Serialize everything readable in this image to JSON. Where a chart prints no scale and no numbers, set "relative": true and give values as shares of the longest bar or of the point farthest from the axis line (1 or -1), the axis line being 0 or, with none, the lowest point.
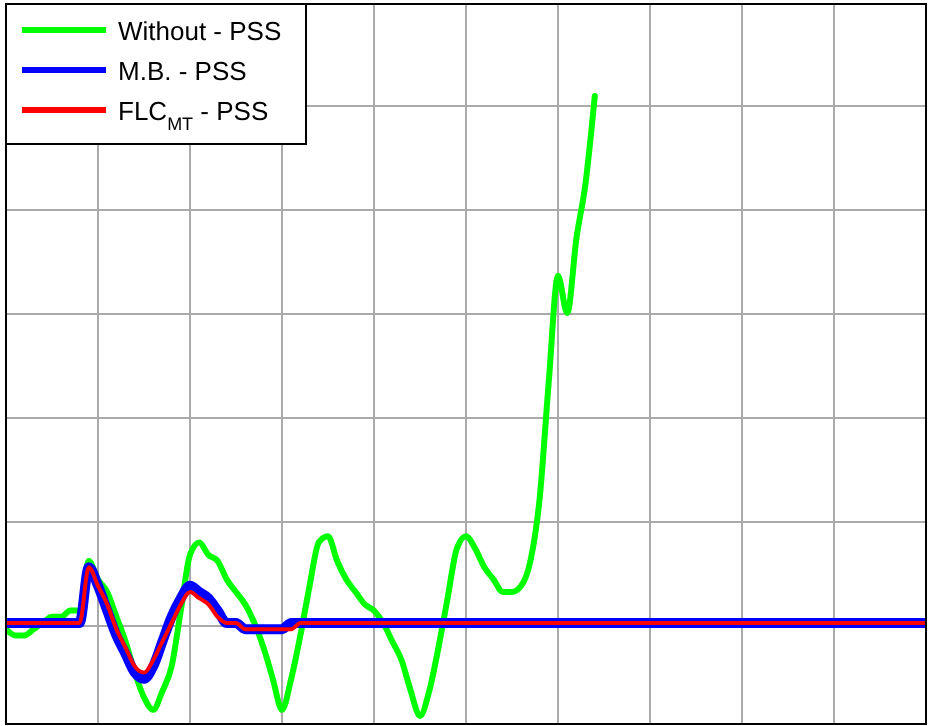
{
  "chart_data": {
    "type": "line",
    "relative": true,
    "grid": true,
    "legend": "top left",
    "line_style": "solid",
    "marker": "none",
    "categories": [
      null,
      null,
      null,
      null,
      null,
      null,
      null,
      null,
      null,
      null,
      null,
      null,
      null,
      null,
      null,
      null,
      null,
      null,
      null,
      null,
      null,
      null,
      null,
      null,
      null,
      null,
      null,
      null,
      null,
      null,
      null,
      null,
      null,
      null,
      null,
      null,
      null,
      null,
      null,
      null,
      null,
      null,
      null,
      null,
      null,
      null,
      null,
      null,
      null,
      null,
      null,
      null,
      null,
      null,
      null,
      null,
      null,
      null,
      null,
      null,
      null,
      null,
      null,
      null,
      null,
      null,
      null,
      null,
      null,
      null,
      null,
      null,
      null,
      null,
      null,
      null,
      null,
      null,
      null,
      null,
      null,
      null,
      null,
      null,
      null,
      null,
      null,
      null,
      null,
      null,
      null,
      null,
      null,
      null,
      null,
      null,
      null,
      null,
      null,
      null,
      null
    ],
    "series": [
      {
        "name": "Without - PSS",
        "color": "#00ff00",
        "values": [
          0.14,
          0.13,
          0.13,
          0.14,
          0.15,
          0.16,
          0.16,
          0.17,
          0.17,
          0.25,
          0.22,
          0.2,
          0.16,
          0.12,
          0.07,
          0.03,
          0.01,
          0.04,
          0.08,
          0.17,
          0.26,
          0.28,
          0.26,
          0.25,
          0.22,
          0.2,
          0.18,
          0.15,
          0.11,
          0.06,
          0.01,
          0.06,
          0.13,
          0.21,
          0.28,
          0.29,
          0.25,
          0.22,
          0.2,
          0.18,
          0.17,
          0.15,
          0.12,
          0.09,
          0.04,
          0.0,
          0.04,
          0.11,
          0.19,
          0.27,
          0.29,
          0.27,
          0.24,
          0.22,
          0.2,
          0.2,
          0.21,
          0.25,
          0.35,
          0.54,
          0.71,
          0.65,
          0.77,
          0.86,
          1.0,
          null,
          null,
          null,
          null,
          null,
          null,
          null,
          null,
          null,
          null,
          null,
          null,
          null,
          null,
          null,
          null,
          null,
          null,
          null,
          null,
          null,
          null,
          null,
          null,
          null,
          null,
          null,
          null,
          null,
          null,
          null,
          null,
          null,
          null,
          null,
          null
        ]
      },
      {
        "name": "M.B. - PSS",
        "color": "#0000ff",
        "values": [
          0.15,
          0.15,
          0.15,
          0.15,
          0.15,
          0.15,
          0.15,
          0.15,
          0.15,
          0.24,
          0.21,
          0.17,
          0.13,
          0.1,
          0.07,
          0.06,
          0.08,
          0.12,
          0.16,
          0.19,
          0.21,
          0.2,
          0.19,
          0.17,
          0.15,
          0.15,
          0.14,
          0.14,
          0.14,
          0.14,
          0.14,
          0.15,
          0.15,
          0.15,
          0.15,
          0.15,
          0.15,
          0.15,
          0.15,
          0.15,
          0.15,
          0.15,
          0.15,
          0.15,
          0.15,
          0.15,
          0.15,
          0.15,
          0.15,
          0.15,
          0.15,
          0.15,
          0.15,
          0.15,
          0.15,
          0.15,
          0.15,
          0.15,
          0.15,
          0.15,
          0.15,
          0.15,
          0.15,
          0.15,
          0.15,
          0.15,
          0.15,
          0.15,
          0.15,
          0.15,
          0.15,
          0.15,
          0.15,
          0.15,
          0.15,
          0.15,
          0.15,
          0.15,
          0.15,
          0.15,
          0.15,
          0.15,
          0.15,
          0.15,
          0.15,
          0.15,
          0.15,
          0.15,
          0.15,
          0.15,
          0.15,
          0.15,
          0.15,
          0.15,
          0.15,
          0.15,
          0.15,
          0.15,
          0.15,
          0.15,
          0.15
        ]
      },
      {
        "name": "FLC$_{MT}$ - PSS",
        "color": "#ff0000",
        "values": [
          0.15,
          0.15,
          0.15,
          0.15,
          0.15,
          0.15,
          0.15,
          0.15,
          0.15,
          0.24,
          0.21,
          0.18,
          0.14,
          0.11,
          0.08,
          0.07,
          0.09,
          0.12,
          0.15,
          0.18,
          0.2,
          0.19,
          0.18,
          0.16,
          0.15,
          0.15,
          0.14,
          0.14,
          0.14,
          0.14,
          0.14,
          0.14,
          0.15,
          0.15,
          0.15,
          0.15,
          0.15,
          0.15,
          0.15,
          0.15,
          0.15,
          0.15,
          0.15,
          0.15,
          0.15,
          0.15,
          0.15,
          0.15,
          0.15,
          0.15,
          0.15,
          0.15,
          0.15,
          0.15,
          0.15,
          0.15,
          0.15,
          0.15,
          0.15,
          0.15,
          0.15,
          0.15,
          0.15,
          0.15,
          0.15,
          0.15,
          0.15,
          0.15,
          0.15,
          0.15,
          0.15,
          0.15,
          0.15,
          0.15,
          0.15,
          0.15,
          0.15,
          0.15,
          0.15,
          0.15,
          0.15,
          0.15,
          0.15,
          0.15,
          0.15,
          0.15,
          0.15,
          0.15,
          0.15,
          0.15,
          0.15,
          0.15,
          0.15,
          0.15,
          0.15,
          0.15,
          0.15,
          0.15,
          0.15,
          0.15,
          0.15
        ]
      }
    ]
  }
}
